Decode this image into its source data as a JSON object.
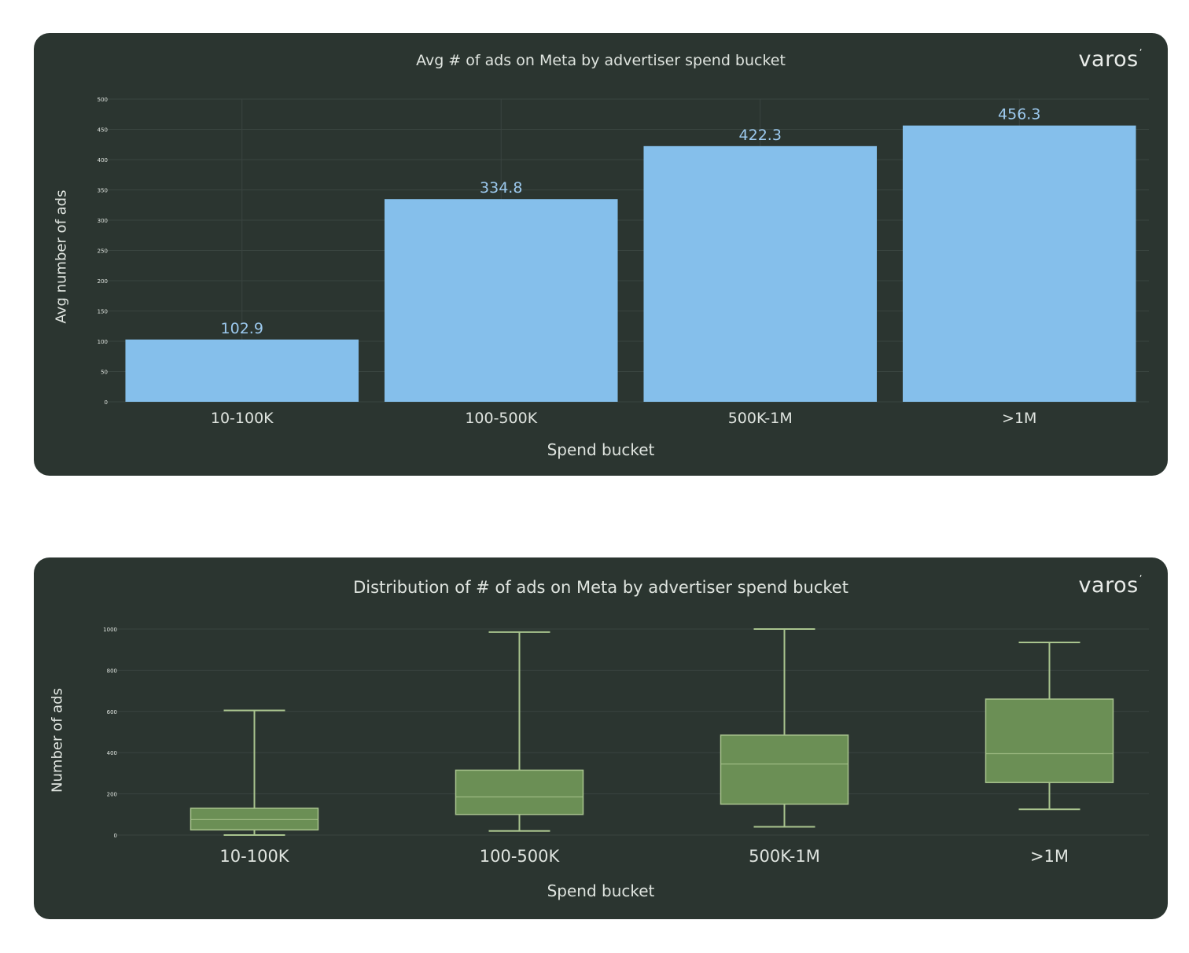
{
  "colors": {
    "panel_background": "#2b3530",
    "bar_fill": "#85bfeb",
    "bar_label": "#9cc9ee",
    "box_fill": "#6b8f55",
    "whisker": "#a9c48e",
    "text": "#dfe4df",
    "grid": "#3a4540"
  },
  "brand": {
    "logo_text": "varos"
  },
  "chart_data": [
    {
      "type": "bar",
      "title": "Avg # of ads on Meta by advertiser spend bucket",
      "xlabel": "Spend bucket",
      "ylabel": "Avg number of ads",
      "categories": [
        "10-100K",
        "100-500K",
        "500K-1M",
        ">1M"
      ],
      "values": [
        102.9,
        334.8,
        422.3,
        456.3
      ],
      "value_labels": [
        "102.9",
        "334.8",
        "422.3",
        "456.3"
      ],
      "ylim": [
        0,
        500
      ],
      "yticks": [
        0,
        50,
        100,
        150,
        200,
        250,
        300,
        350,
        400,
        450,
        500
      ],
      "grid": true
    },
    {
      "type": "box",
      "title": "Distribution of # of ads on Meta by advertiser spend bucket",
      "xlabel": "Spend bucket",
      "ylabel": "Number of ads",
      "categories": [
        "10-100K",
        "100-500K",
        "500K-1M",
        ">1M"
      ],
      "boxes": [
        {
          "min": 0,
          "q1": 25,
          "median": 75,
          "q3": 130,
          "max": 605
        },
        {
          "min": 20,
          "q1": 100,
          "median": 185,
          "q3": 315,
          "max": 985
        },
        {
          "min": 40,
          "q1": 150,
          "median": 345,
          "q3": 485,
          "max": 1000
        },
        {
          "min": 125,
          "q1": 255,
          "median": 395,
          "q3": 660,
          "max": 935
        }
      ],
      "ylim": [
        0,
        1000
      ],
      "yticks": [
        0,
        200,
        400,
        600,
        800,
        1000
      ],
      "grid": true
    }
  ]
}
